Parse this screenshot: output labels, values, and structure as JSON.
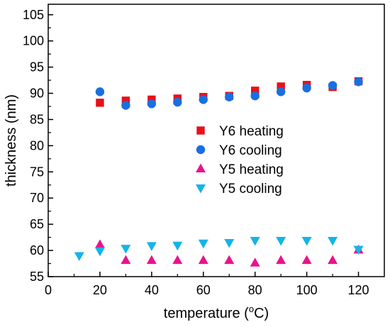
{
  "chart_data": {
    "type": "scatter",
    "xlabel": "temperature (°C)",
    "xlabel_main": "temperature (",
    "xlabel_sup": "o",
    "xlabel_end": "C)",
    "ylabel": "thickness (nm)",
    "xlim": [
      0,
      130
    ],
    "ylim": [
      55,
      107
    ],
    "xticks": [
      0,
      20,
      40,
      60,
      80,
      100,
      120
    ],
    "yticks": [
      55,
      60,
      65,
      70,
      75,
      80,
      85,
      90,
      95,
      100,
      105
    ],
    "grid": false,
    "legend_position": "middle-right",
    "series": [
      {
        "name": "Y6 heating",
        "marker": "square",
        "color": "#e8101a",
        "x": [
          20,
          30,
          40,
          50,
          60,
          70,
          80,
          90,
          100,
          110,
          120
        ],
        "y": [
          88.2,
          88.6,
          88.8,
          89.0,
          89.3,
          89.5,
          90.5,
          91.3,
          91.6,
          91.2,
          92.3
        ]
      },
      {
        "name": "Y6 cooling",
        "marker": "circle",
        "color": "#1a6fe0",
        "x": [
          20,
          30,
          40,
          50,
          60,
          70,
          80,
          90,
          100,
          110,
          120
        ],
        "y": [
          90.3,
          87.7,
          88.0,
          88.3,
          88.8,
          89.3,
          89.5,
          90.3,
          91.0,
          91.5,
          92.2
        ]
      },
      {
        "name": "Y5 heating",
        "marker": "triangle-up",
        "color": "#e8138c",
        "x": [
          20,
          30,
          40,
          50,
          60,
          70,
          80,
          90,
          100,
          110,
          120
        ],
        "y": [
          61.1,
          58.1,
          58.1,
          58.1,
          58.1,
          58.1,
          57.6,
          58.1,
          58.1,
          58.1,
          60.1
        ]
      },
      {
        "name": "Y5 cooling",
        "marker": "triangle-down",
        "color": "#14b4e8",
        "x": [
          12,
          20,
          30,
          40,
          50,
          60,
          70,
          80,
          90,
          100,
          110,
          120
        ],
        "y": [
          59.0,
          59.9,
          60.4,
          60.9,
          61.0,
          61.4,
          61.5,
          61.9,
          61.9,
          61.9,
          61.9,
          60.2
        ]
      }
    ]
  }
}
